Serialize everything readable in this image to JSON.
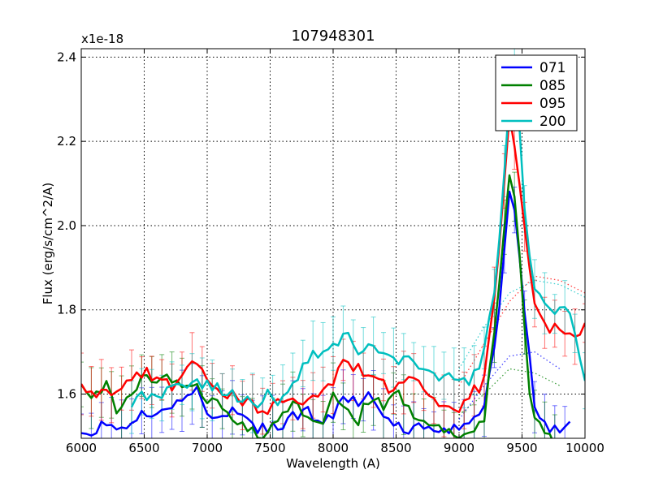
{
  "chart_data": {
    "type": "line",
    "title": "107948301",
    "xlabel": "Wavelength (A)",
    "ylabel": "Flux (erg/s/cm^2/A)",
    "offset_label": "x1e-18",
    "xlim": [
      6000,
      10000
    ],
    "ylim": [
      1.495,
      2.42
    ],
    "xticks": [
      6000,
      6500,
      7000,
      7500,
      8000,
      8500,
      9000,
      9500,
      10000
    ],
    "xtick_labels": [
      "6000",
      "6500",
      "7000",
      "7500",
      "8000",
      "8500",
      "9000",
      "9500",
      "10000"
    ],
    "yticks": [
      1.6,
      1.8,
      2.0,
      2.2,
      2.4
    ],
    "ytick_labels": [
      "1.6",
      "1.8",
      "2.0",
      "2.2",
      "2.4"
    ],
    "grid": true,
    "legend_position": "top-right",
    "series": [
      {
        "name": "071",
        "color": "#0000ff",
        "start": 6000,
        "end": 9900,
        "anchors": [
          [
            6000,
            1.51
          ],
          [
            6100,
            1.51
          ],
          [
            6200,
            1.54
          ],
          [
            6300,
            1.52
          ],
          [
            6400,
            1.53
          ],
          [
            6500,
            1.55
          ],
          [
            6600,
            1.56
          ],
          [
            6700,
            1.56
          ],
          [
            6800,
            1.58
          ],
          [
            6900,
            1.62
          ],
          [
            7000,
            1.56
          ],
          [
            7100,
            1.55
          ],
          [
            7200,
            1.56
          ],
          [
            7300,
            1.54
          ],
          [
            7400,
            1.52
          ],
          [
            7500,
            1.52
          ],
          [
            7600,
            1.53
          ],
          [
            7700,
            1.55
          ],
          [
            7800,
            1.56
          ],
          [
            7900,
            1.54
          ],
          [
            8000,
            1.54
          ],
          [
            8100,
            1.6
          ],
          [
            8200,
            1.57
          ],
          [
            8300,
            1.6
          ],
          [
            8400,
            1.55
          ],
          [
            8500,
            1.53
          ],
          [
            8600,
            1.51
          ],
          [
            8700,
            1.52
          ],
          [
            8800,
            1.51
          ],
          [
            8900,
            1.52
          ],
          [
            9000,
            1.52
          ],
          [
            9100,
            1.53
          ],
          [
            9200,
            1.58
          ],
          [
            9300,
            1.74
          ],
          [
            9400,
            2.08
          ],
          [
            9450,
            2.03
          ],
          [
            9500,
            1.85
          ],
          [
            9550,
            1.72
          ],
          [
            9600,
            1.57
          ],
          [
            9700,
            1.51
          ],
          [
            9800,
            1.52
          ],
          [
            9900,
            1.52
          ]
        ],
        "model": [
          [
            9000,
            1.54
          ],
          [
            9200,
            1.62
          ],
          [
            9400,
            1.69
          ],
          [
            9600,
            1.7
          ],
          [
            9800,
            1.66
          ]
        ]
      },
      {
        "name": "085",
        "color": "#008000",
        "start": 6000,
        "end": 9800,
        "anchors": [
          [
            6000,
            1.62
          ],
          [
            6100,
            1.59
          ],
          [
            6200,
            1.63
          ],
          [
            6300,
            1.55
          ],
          [
            6400,
            1.6
          ],
          [
            6500,
            1.64
          ],
          [
            6600,
            1.62
          ],
          [
            6700,
            1.65
          ],
          [
            6800,
            1.61
          ],
          [
            6900,
            1.63
          ],
          [
            7000,
            1.59
          ],
          [
            7100,
            1.58
          ],
          [
            7200,
            1.54
          ],
          [
            7300,
            1.53
          ],
          [
            7400,
            1.49
          ],
          [
            7500,
            1.52
          ],
          [
            7600,
            1.55
          ],
          [
            7700,
            1.58
          ],
          [
            7800,
            1.54
          ],
          [
            7900,
            1.52
          ],
          [
            8000,
            1.6
          ],
          [
            8100,
            1.58
          ],
          [
            8200,
            1.54
          ],
          [
            8300,
            1.6
          ],
          [
            8400,
            1.57
          ],
          [
            8500,
            1.61
          ],
          [
            8600,
            1.56
          ],
          [
            8700,
            1.54
          ],
          [
            8800,
            1.52
          ],
          [
            8900,
            1.52
          ],
          [
            9000,
            1.5
          ],
          [
            9100,
            1.51
          ],
          [
            9200,
            1.55
          ],
          [
            9300,
            1.8
          ],
          [
            9400,
            2.12
          ],
          [
            9450,
            2.05
          ],
          [
            9500,
            1.85
          ],
          [
            9550,
            1.62
          ],
          [
            9600,
            1.55
          ],
          [
            9700,
            1.5
          ],
          [
            9800,
            1.47
          ]
        ],
        "model": [
          [
            9000,
            1.55
          ],
          [
            9200,
            1.6
          ],
          [
            9400,
            1.66
          ],
          [
            9600,
            1.65
          ],
          [
            9800,
            1.62
          ]
        ]
      },
      {
        "name": "095",
        "color": "#ff0000",
        "start": 6000,
        "end": 10000,
        "anchors": [
          [
            6000,
            1.62
          ],
          [
            6100,
            1.6
          ],
          [
            6200,
            1.61
          ],
          [
            6300,
            1.6
          ],
          [
            6400,
            1.63
          ],
          [
            6500,
            1.65
          ],
          [
            6600,
            1.64
          ],
          [
            6700,
            1.62
          ],
          [
            6800,
            1.63
          ],
          [
            6900,
            1.68
          ],
          [
            7000,
            1.63
          ],
          [
            7100,
            1.6
          ],
          [
            7200,
            1.6
          ],
          [
            7300,
            1.58
          ],
          [
            7400,
            1.57
          ],
          [
            7500,
            1.56
          ],
          [
            7600,
            1.59
          ],
          [
            7700,
            1.59
          ],
          [
            7800,
            1.58
          ],
          [
            7900,
            1.6
          ],
          [
            8000,
            1.63
          ],
          [
            8100,
            1.68
          ],
          [
            8200,
            1.66
          ],
          [
            8300,
            1.64
          ],
          [
            8400,
            1.62
          ],
          [
            8500,
            1.61
          ],
          [
            8600,
            1.64
          ],
          [
            8700,
            1.63
          ],
          [
            8800,
            1.59
          ],
          [
            8900,
            1.58
          ],
          [
            9000,
            1.55
          ],
          [
            9100,
            1.6
          ],
          [
            9200,
            1.63
          ],
          [
            9300,
            1.88
          ],
          [
            9400,
            2.26
          ],
          [
            9450,
            2.17
          ],
          [
            9500,
            2.05
          ],
          [
            9550,
            1.92
          ],
          [
            9600,
            1.82
          ],
          [
            9700,
            1.75
          ],
          [
            9800,
            1.76
          ],
          [
            9900,
            1.73
          ],
          [
            10000,
            1.76
          ]
        ],
        "model": [
          [
            9000,
            1.62
          ],
          [
            9200,
            1.72
          ],
          [
            9400,
            1.82
          ],
          [
            9600,
            1.88
          ],
          [
            9800,
            1.87
          ],
          [
            10000,
            1.84
          ]
        ]
      },
      {
        "name": "200",
        "color": "#00bfbf",
        "start": 6400,
        "end": 10000,
        "anchors": [
          [
            6400,
            1.58
          ],
          [
            6500,
            1.6
          ],
          [
            6600,
            1.59
          ],
          [
            6700,
            1.61
          ],
          [
            6800,
            1.61
          ],
          [
            6900,
            1.62
          ],
          [
            7000,
            1.63
          ],
          [
            7100,
            1.61
          ],
          [
            7200,
            1.6
          ],
          [
            7300,
            1.58
          ],
          [
            7400,
            1.58
          ],
          [
            7500,
            1.6
          ],
          [
            7600,
            1.58
          ],
          [
            7700,
            1.63
          ],
          [
            7800,
            1.68
          ],
          [
            7900,
            1.7
          ],
          [
            8000,
            1.72
          ],
          [
            8100,
            1.74
          ],
          [
            8200,
            1.7
          ],
          [
            8300,
            1.72
          ],
          [
            8400,
            1.7
          ],
          [
            8500,
            1.68
          ],
          [
            8600,
            1.7
          ],
          [
            8700,
            1.66
          ],
          [
            8800,
            1.64
          ],
          [
            8900,
            1.65
          ],
          [
            9000,
            1.62
          ],
          [
            9100,
            1.63
          ],
          [
            9200,
            1.7
          ],
          [
            9300,
            1.88
          ],
          [
            9400,
            2.3
          ],
          [
            9450,
            2.42
          ],
          [
            9500,
            2.1
          ],
          [
            9550,
            1.95
          ],
          [
            9600,
            1.85
          ],
          [
            9700,
            1.79
          ],
          [
            9800,
            1.8
          ],
          [
            9900,
            1.78
          ],
          [
            10000,
            1.62
          ]
        ],
        "model": [
          [
            9000,
            1.66
          ],
          [
            9200,
            1.76
          ],
          [
            9400,
            1.84
          ],
          [
            9600,
            1.87
          ],
          [
            9800,
            1.86
          ],
          [
            10000,
            1.83
          ]
        ]
      }
    ]
  }
}
